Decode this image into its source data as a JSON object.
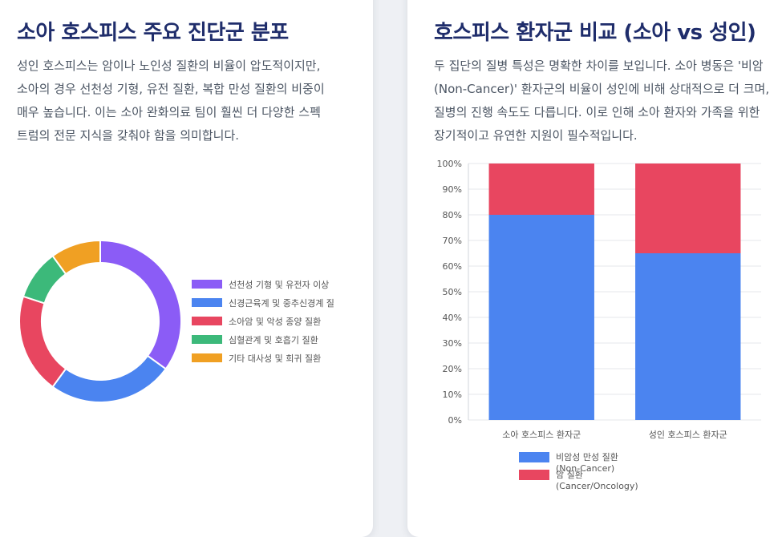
{
  "left_card": {
    "title": "소아 호스피스 주요 진단군 분포",
    "description": "성인 호스피스는 암이나 노인성 질환의 비율이 압도적이지만, 소아의 경우 선천성 기형, 유전 질환, 복합 만성 질환의 비중이 매우 높습니다. 이는 소아 완화의료 팀이 훨씬 더 다양한 스펙트럼의 전문 지식을 갖춰야 함을 의미합니다."
  },
  "right_card": {
    "title": "호스피스 환자군 비교 (소아 vs 성인)",
    "description": "두 집단의 질병 특성은 명확한 차이를 보입니다. 소아 병동은 '비암(Non-Cancer)' 환자군의 비율이 성인에 비해 상대적으로 더 크며, 질병의 진행 속도도 다릅니다. 이로 인해 소아 환자와 가족을 위한 장기적이고 유연한 지원이 필수적입니다."
  },
  "chart_data": [
    {
      "type": "pie",
      "categories": [
        "선천성 기형 및 유전자 이상",
        "신경근육계 및 중추신경계 질",
        "소아암 및 악성 종양 질환",
        "심혈관계 및 호흡기 질환",
        "기타 대사성 및 희귀 질환"
      ],
      "values": [
        35,
        25,
        20,
        10,
        10
      ],
      "colors": [
        "#8b5cf6",
        "#4b84f0",
        "#e84660",
        "#3cb97a",
        "#f0a023"
      ],
      "donut": true,
      "legend_position": "right"
    },
    {
      "type": "bar",
      "stacked": true,
      "categories": [
        "소아 호스피스 환자군",
        "성인 호스피스 환자군"
      ],
      "series": [
        {
          "name": "비암성 만성 질환 (Non-Cancer)",
          "values": [
            80,
            65
          ],
          "color": "#4b84f0"
        },
        {
          "name": "암 질환 (Cancer/Oncology)",
          "values": [
            20,
            35
          ],
          "color": "#e84660"
        }
      ],
      "ylim": [
        0,
        100
      ],
      "ytick_step": 10,
      "ytick_suffix": "%",
      "grid": true,
      "legend_position": "bottom"
    }
  ]
}
